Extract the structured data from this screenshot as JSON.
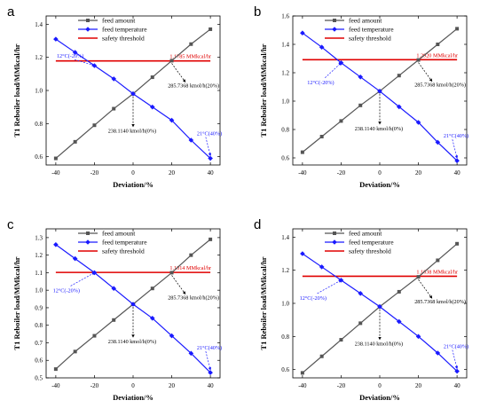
{
  "colors": {
    "feed_amount": "#555555",
    "feed_temperature": "#1a1aff",
    "safety_threshold": "#e00000",
    "annotation_black": "#000000",
    "annotation_blue": "#1a1aff",
    "annotation_red": "#e00000"
  },
  "chart_data": [
    {
      "type": "line",
      "panel_label": "a",
      "xlabel": "Deviation/%",
      "ylabel": "T1 Reboiler load/MMkcal/hr",
      "xlim": [
        -45,
        45
      ],
      "ylim": [
        0.55,
        1.45
      ],
      "xticks": [
        -40,
        -20,
        0,
        20,
        40
      ],
      "xtick_labels": [
        "-40",
        "-20",
        "0",
        "20",
        "40"
      ],
      "yticks": [
        0.6,
        0.8,
        1.0,
        1.2,
        1.4
      ],
      "ytick_labels": [
        "0.6",
        "0.8",
        "1.0",
        "1.2",
        "1.4"
      ],
      "x": [
        -40,
        -30,
        -20,
        -10,
        0,
        10,
        20,
        30,
        40
      ],
      "series": [
        {
          "name": "feed amount",
          "marker": "square",
          "values": [
            0.59,
            0.69,
            0.79,
            0.89,
            0.98,
            1.08,
            1.18,
            1.28,
            1.37
          ]
        },
        {
          "name": "feed temperature",
          "marker": "diamond",
          "values": [
            1.31,
            1.23,
            1.15,
            1.07,
            0.98,
            0.9,
            0.82,
            0.7,
            0.59
          ]
        }
      ],
      "threshold": {
        "name": "safety threshold",
        "value": 1.1785,
        "label": "1.1785 MMkcal/hr"
      },
      "legend": [
        "feed amount",
        "feed temperature",
        "safety threshold"
      ],
      "annotations": {
        "temp_low": "12°C(-20%)",
        "temp_high": "21°C(40%)",
        "amount_center": "238.1140 kmol/h(0%)",
        "amount_high": "285.7368 kmol/h(20%)"
      }
    },
    {
      "type": "line",
      "panel_label": "b",
      "xlabel": "Deviation/%",
      "ylabel": "T1 Reboiler load/MMkcal/hr",
      "xlim": [
        -45,
        45
      ],
      "ylim": [
        0.55,
        1.6
      ],
      "xticks": [
        -40,
        -20,
        0,
        20,
        40
      ],
      "xtick_labels": [
        "-40",
        "-20",
        "0",
        "20",
        "40"
      ],
      "yticks": [
        0.6,
        0.8,
        1.0,
        1.2,
        1.4,
        1.6
      ],
      "ytick_labels": [
        "0.6",
        "0.8",
        "1.0",
        "1.2",
        "1.4",
        "1.6"
      ],
      "x": [
        -40,
        -30,
        -20,
        -10,
        0,
        10,
        20,
        30,
        40
      ],
      "series": [
        {
          "name": "feed amount",
          "marker": "square",
          "values": [
            0.64,
            0.75,
            0.86,
            0.97,
            1.07,
            1.18,
            1.29,
            1.4,
            1.51
          ]
        },
        {
          "name": "feed temperature",
          "marker": "diamond",
          "values": [
            1.48,
            1.38,
            1.27,
            1.17,
            1.07,
            0.96,
            0.85,
            0.71,
            0.58
          ]
        }
      ],
      "threshold": {
        "name": "safety threshold",
        "value": 1.292,
        "label": "1.2920 MMkcal/hr"
      },
      "legend": [
        "feed amount",
        "feed temperature",
        "safety threshold"
      ],
      "annotations": {
        "temp_low": "12°C(-20%)",
        "temp_high": "21°C(40%)",
        "amount_center": "238.1140 kmol/h(0%)",
        "amount_high": "285.7368 kmol/h(20%)"
      }
    },
    {
      "type": "line",
      "panel_label": "c",
      "xlabel": "Deviation/%",
      "ylabel": "T1 Reboiler load/MMkcal/hr",
      "xlim": [
        -45,
        45
      ],
      "ylim": [
        0.5,
        1.35
      ],
      "xticks": [
        -40,
        -20,
        0,
        20,
        40
      ],
      "xtick_labels": [
        "-40",
        "-20",
        "0",
        "20",
        "40"
      ],
      "yticks": [
        0.5,
        0.6,
        0.7,
        0.8,
        0.9,
        1.0,
        1.1,
        1.2,
        1.3
      ],
      "ytick_labels": [
        "0.5",
        "0.6",
        "0.7",
        "0.8",
        "0.9",
        "1.0",
        "1.1",
        "1.2",
        "1.3"
      ],
      "x": [
        -40,
        -30,
        -20,
        -10,
        0,
        10,
        20,
        30,
        40
      ],
      "series": [
        {
          "name": "feed amount",
          "marker": "square",
          "values": [
            0.55,
            0.65,
            0.74,
            0.83,
            0.92,
            1.01,
            1.1,
            1.2,
            1.29
          ]
        },
        {
          "name": "feed temperature",
          "marker": "diamond",
          "values": [
            1.26,
            1.18,
            1.1,
            1.01,
            0.92,
            0.84,
            0.74,
            0.64,
            0.53
          ]
        }
      ],
      "threshold": {
        "name": "safety threshold",
        "value": 1.1014,
        "label": "1.1014 MMkcal/hr"
      },
      "legend": [
        "feed amount",
        "feed temperature",
        "safety threshold"
      ],
      "annotations": {
        "temp_low": "12°C(-20%)",
        "temp_high": "21°C(40%)",
        "amount_center": "238.1140 kmol/h(0%)",
        "amount_high": "285.7368 kmol/h(20%)"
      }
    },
    {
      "type": "line",
      "panel_label": "d",
      "xlabel": "Deviation/%",
      "ylabel": "T1 Reboiler load/MMkcal/hr",
      "xlim": [
        -45,
        45
      ],
      "ylim": [
        0.55,
        1.45
      ],
      "xticks": [
        -40,
        -20,
        0,
        20,
        40
      ],
      "xtick_labels": [
        "-40",
        "-20",
        "0",
        "20",
        "40"
      ],
      "yticks": [
        0.6,
        0.8,
        1.0,
        1.2,
        1.4
      ],
      "ytick_labels": [
        "0.6",
        "0.8",
        "1.0",
        "1.2",
        "1.4"
      ],
      "x": [
        -40,
        -30,
        -20,
        -10,
        0,
        10,
        20,
        30,
        40
      ],
      "series": [
        {
          "name": "feed amount",
          "marker": "square",
          "values": [
            0.58,
            0.68,
            0.78,
            0.88,
            0.98,
            1.07,
            1.16,
            1.26,
            1.36
          ]
        },
        {
          "name": "feed temperature",
          "marker": "diamond",
          "values": [
            1.3,
            1.22,
            1.14,
            1.06,
            0.98,
            0.89,
            0.8,
            0.7,
            0.59
          ]
        }
      ],
      "threshold": {
        "name": "safety threshold",
        "value": 1.1638,
        "label": "1.1638 MMkcal/hr"
      },
      "legend": [
        "feed amount",
        "feed temperature",
        "safety threshold"
      ],
      "annotations": {
        "temp_low": "12°C(-20%)",
        "temp_high": "21°C(40%)",
        "amount_center": "238.1140 kmol/h(0%)",
        "amount_high": "285.7368 kmol/h(20%)"
      }
    }
  ]
}
